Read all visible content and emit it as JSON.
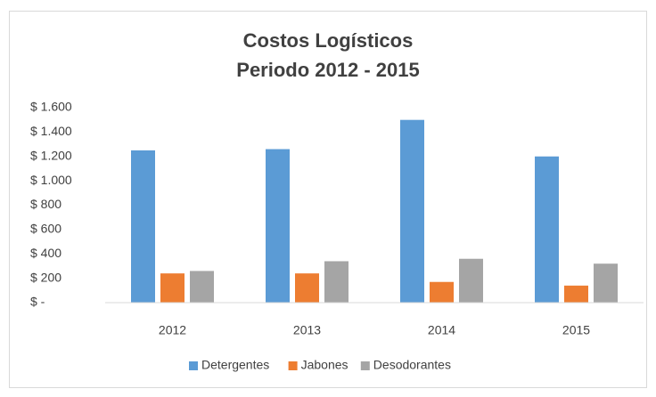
{
  "chart_data": {
    "type": "bar",
    "title": "Costos Logísticos",
    "subtitle": "Periodo 2012 - 2015",
    "categories": [
      "2012",
      "2013",
      "2014",
      "2015"
    ],
    "series": [
      {
        "name": "Detergentes",
        "color": "#5b9bd5",
        "values": [
          1250,
          1260,
          1500,
          1200
        ]
      },
      {
        "name": "Jabones",
        "color": "#ed7d31",
        "values": [
          240,
          240,
          170,
          140
        ]
      },
      {
        "name": "Desodorantes",
        "color": "#a5a5a5",
        "values": [
          260,
          340,
          360,
          320
        ]
      }
    ],
    "ylim": [
      0,
      1600
    ],
    "yticks": [
      {
        "value": 0,
        "label": "$ -"
      },
      {
        "value": 200,
        "label": "$ 200"
      },
      {
        "value": 400,
        "label": "$ 400"
      },
      {
        "value": 600,
        "label": "$ 600"
      },
      {
        "value": 800,
        "label": "$ 800"
      },
      {
        "value": 1000,
        "label": "$ 1.000"
      },
      {
        "value": 1200,
        "label": "$ 1.200"
      },
      {
        "value": 1400,
        "label": "$ 1.400"
      },
      {
        "value": 1600,
        "label": "$ 1.600"
      }
    ],
    "grid": false,
    "legend": "bottom"
  }
}
